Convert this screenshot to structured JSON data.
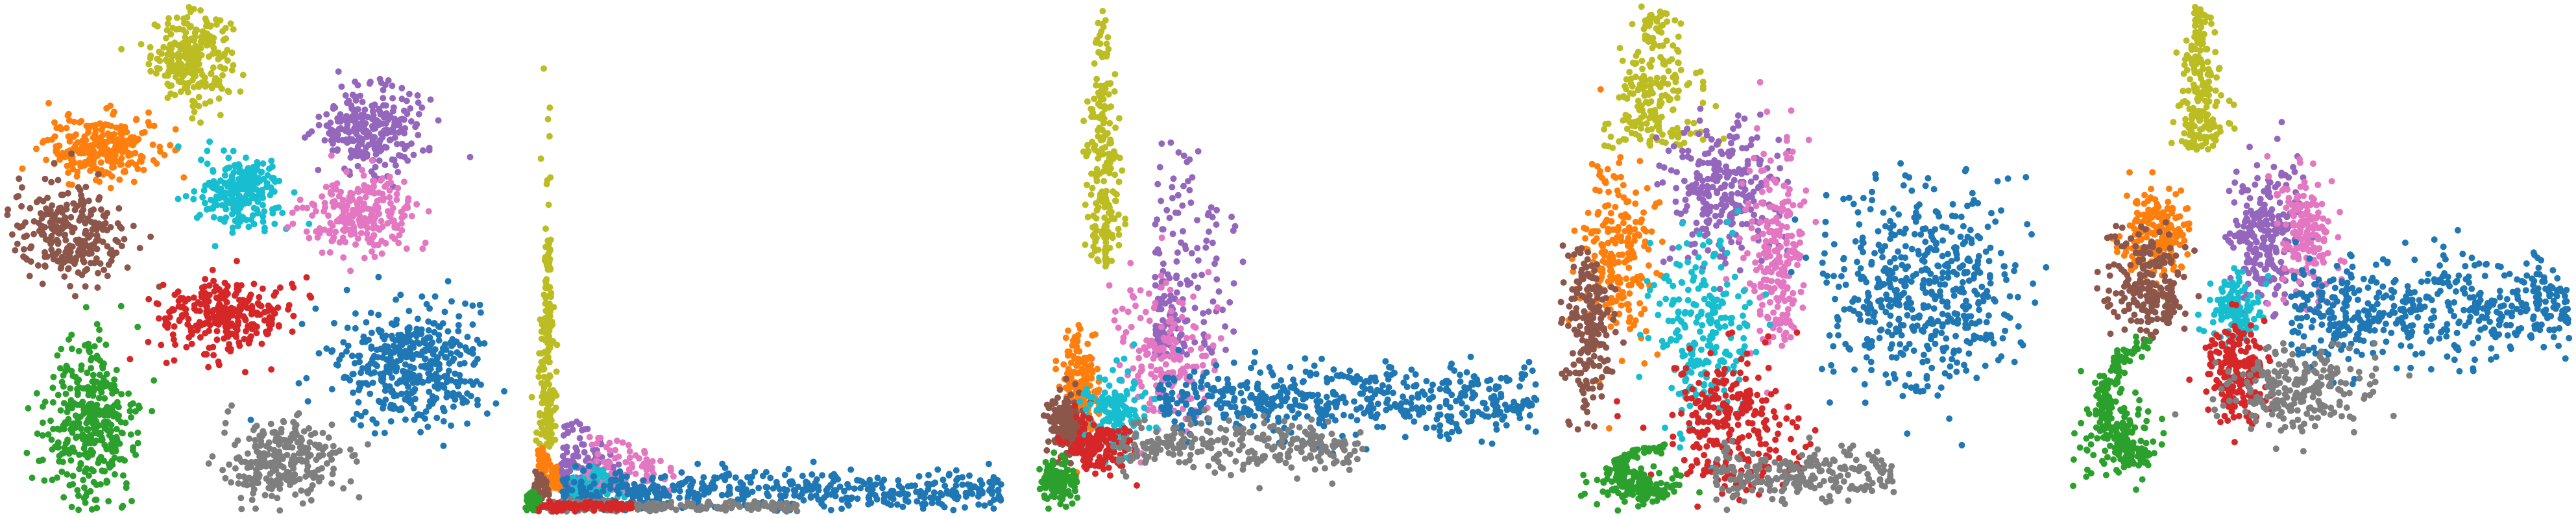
{
  "figure": {
    "background": "#ffffff"
  },
  "palette": {
    "blue": "#1f77b4",
    "orange": "#ff7f0e",
    "green": "#2ca02c",
    "red": "#d62728",
    "purple": "#9467bd",
    "brown": "#8c564b",
    "pink": "#e377c2",
    "gray": "#7f7f7f",
    "olive": "#bcbd22",
    "cyan": "#17becf"
  },
  "chart_data": [
    {
      "type": "scatter",
      "xlabel": "",
      "ylabel": "",
      "axes": "off",
      "grid": false,
      "legend": "none",
      "series": [
        {
          "color": "#bcbd22",
          "cx": 0.37,
          "cy": 0.9,
          "rx": 0.08,
          "ry": 0.085,
          "count": 260,
          "shape": "blob"
        },
        {
          "color": "#ff7f0e",
          "cx": 0.19,
          "cy": 0.72,
          "rx": 0.11,
          "ry": 0.065,
          "count": 260,
          "shape": "blob"
        },
        {
          "color": "#8c564b",
          "cx": 0.13,
          "cy": 0.55,
          "rx": 0.12,
          "ry": 0.1,
          "count": 260,
          "shape": "blob"
        },
        {
          "color": "#17becf",
          "cx": 0.47,
          "cy": 0.63,
          "rx": 0.08,
          "ry": 0.07,
          "count": 240,
          "shape": "blob"
        },
        {
          "color": "#9467bd",
          "cx": 0.73,
          "cy": 0.76,
          "rx": 0.11,
          "ry": 0.085,
          "count": 260,
          "shape": "blob"
        },
        {
          "color": "#e377c2",
          "cx": 0.71,
          "cy": 0.59,
          "rx": 0.11,
          "ry": 0.07,
          "count": 240,
          "shape": "blob"
        },
        {
          "color": "#d62728",
          "cx": 0.44,
          "cy": 0.39,
          "rx": 0.13,
          "ry": 0.075,
          "count": 280,
          "shape": "blob"
        },
        {
          "color": "#1f77b4",
          "cx": 0.81,
          "cy": 0.29,
          "rx": 0.16,
          "ry": 0.12,
          "count": 420,
          "shape": "blob",
          "tilt": -0.35
        },
        {
          "color": "#2ca02c",
          "cx": 0.17,
          "cy": 0.17,
          "rx": 0.1,
          "ry": 0.16,
          "count": 360,
          "shape": "blob",
          "tilt": 0.3
        },
        {
          "color": "#7f7f7f",
          "cx": 0.55,
          "cy": 0.1,
          "rx": 0.12,
          "ry": 0.075,
          "count": 280,
          "shape": "blob"
        }
      ]
    },
    {
      "type": "scatter",
      "xlabel": "",
      "ylabel": "",
      "axes": "off",
      "grid": false,
      "legend": "none",
      "series": [
        {
          "color": "#bcbd22",
          "cx": 0.05,
          "cy": 0.2,
          "rx": 0.02,
          "ry": 0.25,
          "count": 200,
          "shape": "vspike"
        },
        {
          "color": "#9467bd",
          "cx": 0.1,
          "cy": 0.07,
          "rx": 0.08,
          "ry": 0.09,
          "count": 170,
          "shape": "fan"
        },
        {
          "color": "#e377c2",
          "cx": 0.16,
          "cy": 0.06,
          "rx": 0.12,
          "ry": 0.07,
          "count": 160,
          "shape": "fan"
        },
        {
          "color": "#17becf",
          "cx": 0.12,
          "cy": 0.04,
          "rx": 0.08,
          "ry": 0.04,
          "count": 120,
          "shape": "fan"
        },
        {
          "color": "#ff7f0e",
          "cx": 0.04,
          "cy": 0.05,
          "rx": 0.03,
          "ry": 0.06,
          "count": 120,
          "shape": "fan"
        },
        {
          "color": "#8c564b",
          "cx": 0.03,
          "cy": 0.03,
          "rx": 0.02,
          "ry": 0.04,
          "count": 110,
          "shape": "fan"
        },
        {
          "color": "#1f77b4",
          "cx": 0.52,
          "cy": 0.04,
          "rx": 0.44,
          "ry": 0.04,
          "count": 480,
          "shape": "band"
        },
        {
          "color": "#7f7f7f",
          "cx": 0.3,
          "cy": 0.01,
          "rx": 0.25,
          "ry": 0.012,
          "count": 180,
          "shape": "band"
        },
        {
          "color": "#d62728",
          "cx": 0.12,
          "cy": 0.01,
          "rx": 0.1,
          "ry": 0.01,
          "count": 120,
          "shape": "band"
        },
        {
          "color": "#2ca02c",
          "cx": 0.02,
          "cy": 0.02,
          "rx": 0.01,
          "ry": 0.02,
          "count": 60,
          "shape": "blob"
        }
      ]
    },
    {
      "type": "scatter",
      "xlabel": "",
      "ylabel": "",
      "axes": "off",
      "grid": false,
      "legend": "none",
      "series": [
        {
          "color": "#bcbd22",
          "cx": 0.13,
          "cy": 0.6,
          "rx": 0.04,
          "ry": 0.4,
          "count": 260,
          "shape": "vspike"
        },
        {
          "color": "#9467bd",
          "cx": 0.27,
          "cy": 0.4,
          "rx": 0.12,
          "ry": 0.3,
          "count": 200,
          "shape": "fan"
        },
        {
          "color": "#e377c2",
          "cx": 0.25,
          "cy": 0.3,
          "rx": 0.1,
          "ry": 0.15,
          "count": 180,
          "shape": "blob"
        },
        {
          "color": "#ff7f0e",
          "cx": 0.08,
          "cy": 0.25,
          "rx": 0.04,
          "ry": 0.1,
          "count": 180,
          "shape": "blob"
        },
        {
          "color": "#8c564b",
          "cx": 0.06,
          "cy": 0.17,
          "rx": 0.04,
          "ry": 0.07,
          "count": 150,
          "shape": "blob"
        },
        {
          "color": "#17becf",
          "cx": 0.15,
          "cy": 0.2,
          "rx": 0.06,
          "ry": 0.08,
          "count": 150,
          "shape": "blob"
        },
        {
          "color": "#d62728",
          "cx": 0.12,
          "cy": 0.13,
          "rx": 0.07,
          "ry": 0.05,
          "count": 150,
          "shape": "blob"
        },
        {
          "color": "#1f77b4",
          "cx": 0.62,
          "cy": 0.22,
          "rx": 0.38,
          "ry": 0.07,
          "count": 520,
          "shape": "band"
        },
        {
          "color": "#7f7f7f",
          "cx": 0.4,
          "cy": 0.13,
          "rx": 0.25,
          "ry": 0.05,
          "count": 260,
          "shape": "band"
        },
        {
          "color": "#2ca02c",
          "cx": 0.04,
          "cy": 0.06,
          "rx": 0.035,
          "ry": 0.04,
          "count": 160,
          "shape": "blob"
        }
      ]
    },
    {
      "type": "scatter",
      "xlabel": "",
      "ylabel": "",
      "axes": "off",
      "grid": false,
      "legend": "none",
      "series": [
        {
          "color": "#bcbd22",
          "cx": 0.2,
          "cy": 0.78,
          "rx": 0.1,
          "ry": 0.2,
          "count": 260,
          "shape": "vspike"
        },
        {
          "color": "#9467bd",
          "cx": 0.34,
          "cy": 0.63,
          "rx": 0.11,
          "ry": 0.14,
          "count": 260,
          "shape": "blob"
        },
        {
          "color": "#e377c2",
          "cx": 0.44,
          "cy": 0.5,
          "rx": 0.06,
          "ry": 0.22,
          "count": 220,
          "shape": "blob"
        },
        {
          "color": "#ff7f0e",
          "cx": 0.12,
          "cy": 0.5,
          "rx": 0.08,
          "ry": 0.18,
          "count": 240,
          "shape": "blob"
        },
        {
          "color": "#8c564b",
          "cx": 0.07,
          "cy": 0.36,
          "rx": 0.05,
          "ry": 0.17,
          "count": 200,
          "shape": "blob"
        },
        {
          "color": "#17becf",
          "cx": 0.3,
          "cy": 0.35,
          "rx": 0.1,
          "ry": 0.2,
          "count": 240,
          "shape": "blob"
        },
        {
          "color": "#d62728",
          "cx": 0.36,
          "cy": 0.17,
          "rx": 0.13,
          "ry": 0.14,
          "count": 260,
          "shape": "blob"
        },
        {
          "color": "#1f77b4",
          "cx": 0.74,
          "cy": 0.44,
          "rx": 0.2,
          "ry": 0.2,
          "count": 520,
          "shape": "blob"
        },
        {
          "color": "#7f7f7f",
          "cx": 0.5,
          "cy": 0.07,
          "rx": 0.18,
          "ry": 0.05,
          "count": 220,
          "shape": "band"
        },
        {
          "color": "#2ca02c",
          "cx": 0.16,
          "cy": 0.05,
          "rx": 0.13,
          "ry": 0.06,
          "count": 240,
          "shape": "arc"
        }
      ]
    },
    {
      "type": "scatter",
      "xlabel": "",
      "ylabel": "",
      "axes": "off",
      "grid": false,
      "legend": "none",
      "series": [
        {
          "color": "#bcbd22",
          "cx": 0.26,
          "cy": 0.78,
          "rx": 0.05,
          "ry": 0.22,
          "count": 240,
          "shape": "vspike"
        },
        {
          "color": "#9467bd",
          "cx": 0.39,
          "cy": 0.55,
          "rx": 0.07,
          "ry": 0.14,
          "count": 230,
          "shape": "blob"
        },
        {
          "color": "#e377c2",
          "cx": 0.47,
          "cy": 0.55,
          "rx": 0.06,
          "ry": 0.12,
          "count": 160,
          "shape": "blob"
        },
        {
          "color": "#ff7f0e",
          "cx": 0.17,
          "cy": 0.55,
          "rx": 0.06,
          "ry": 0.1,
          "count": 200,
          "shape": "blob"
        },
        {
          "color": "#8c564b",
          "cx": 0.16,
          "cy": 0.45,
          "rx": 0.08,
          "ry": 0.1,
          "count": 200,
          "shape": "blob"
        },
        {
          "color": "#17becf",
          "cx": 0.33,
          "cy": 0.4,
          "rx": 0.05,
          "ry": 0.07,
          "count": 140,
          "shape": "blob"
        },
        {
          "color": "#d62728",
          "cx": 0.33,
          "cy": 0.27,
          "rx": 0.06,
          "ry": 0.09,
          "count": 200,
          "shape": "blob"
        },
        {
          "color": "#1f77b4",
          "cx": 0.72,
          "cy": 0.4,
          "rx": 0.28,
          "ry": 0.1,
          "count": 500,
          "shape": "band"
        },
        {
          "color": "#7f7f7f",
          "cx": 0.46,
          "cy": 0.24,
          "rx": 0.14,
          "ry": 0.08,
          "count": 240,
          "shape": "blob"
        },
        {
          "color": "#2ca02c",
          "cx": 0.1,
          "cy": 0.15,
          "rx": 0.12,
          "ry": 0.14,
          "count": 280,
          "shape": "arc"
        }
      ]
    }
  ]
}
